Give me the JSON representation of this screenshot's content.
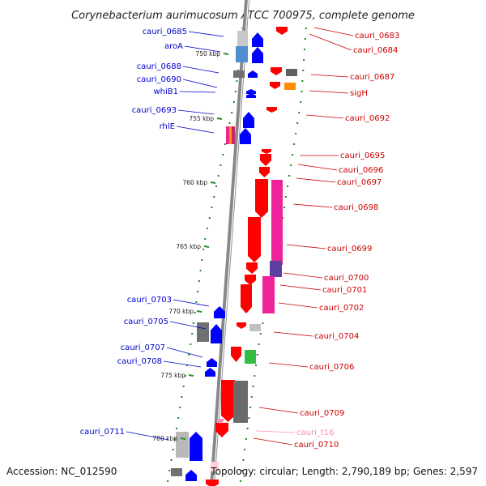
{
  "title": "Corynebacterium aurimucosum ATCC 700975, complete genome",
  "footer": {
    "accession": "Accession: NC_012590",
    "topology": "Topology: circular; Length: 2,790,189 bp; Genes: 2,597"
  },
  "ticks": [
    "750 kbp",
    "755 kbp",
    "760 kbp",
    "765 kbp",
    "770 kbp",
    "775 kbp",
    "780 kbp"
  ],
  "colors": {
    "forward": "#0000ff",
    "reverse": "#ff0000",
    "rna": "#ff88bb",
    "dots": "#1a8a1a",
    "backbone": "#888888"
  },
  "labels_left": [
    "cauri_0685",
    "aroA",
    "cauri_0688",
    "cauri_0690",
    "whiB1",
    "cauri_0693",
    "rhlE",
    "cauri_0703",
    "cauri_0705",
    "cauri_0707",
    "cauri_0708",
    "cauri_0711"
  ],
  "labels_right": [
    "cauri_0683",
    "cauri_0684",
    "cauri_0687",
    "sigH",
    "cauri_0692",
    "cauri_0695",
    "cauri_0696",
    "cauri_0697",
    "cauri_0698",
    "cauri_0699",
    "cauri_0700",
    "cauri_0701",
    "cauri_0702",
    "cauri_0704",
    "cauri_0706",
    "cauri_0709",
    "cauri_t16",
    "cauri_0710"
  ]
}
